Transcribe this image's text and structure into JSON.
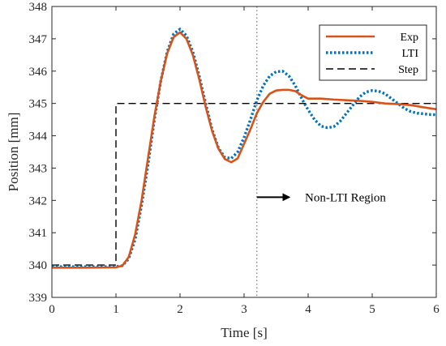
{
  "chart_data": {
    "type": "line",
    "xlabel": "Time [s]",
    "ylabel": "Position [mm]",
    "xlim": [
      0,
      6
    ],
    "ylim": [
      339,
      348
    ],
    "xticks": [
      0,
      1,
      2,
      3,
      4,
      5,
      6
    ],
    "yticks": [
      339,
      340,
      341,
      342,
      343,
      344,
      345,
      346,
      347,
      348
    ],
    "grid": false,
    "legend_position": "top-right",
    "colors": {
      "exp": "#d95319",
      "lti": "#0072bd",
      "step": "#000000",
      "vline": "#555555"
    },
    "series": [
      {
        "name": "Exp",
        "style": "solid",
        "x": [
          0,
          0.5,
          1.0,
          1.1,
          1.2,
          1.3,
          1.4,
          1.5,
          1.6,
          1.7,
          1.8,
          1.9,
          2.0,
          2.1,
          2.2,
          2.3,
          2.4,
          2.5,
          2.6,
          2.7,
          2.8,
          2.9,
          3.0,
          3.1,
          3.2,
          3.3,
          3.4,
          3.5,
          3.6,
          3.7,
          3.8,
          3.9,
          4.0,
          4.2,
          4.4,
          4.6,
          4.8,
          5.0,
          5.2,
          5.4,
          5.6,
          5.8,
          6.0
        ],
        "y": [
          339.92,
          339.92,
          339.93,
          339.98,
          340.25,
          340.95,
          342.0,
          343.3,
          344.6,
          345.7,
          346.55,
          347.05,
          347.2,
          347.0,
          346.5,
          345.75,
          344.9,
          344.15,
          343.6,
          343.28,
          343.18,
          343.3,
          343.75,
          344.2,
          344.7,
          345.05,
          345.3,
          345.4,
          345.42,
          345.42,
          345.38,
          345.25,
          345.15,
          345.15,
          345.12,
          345.1,
          345.08,
          345.05,
          345.0,
          344.98,
          344.95,
          344.88,
          344.82
        ]
      },
      {
        "name": "LTI",
        "style": "dotted",
        "x": [
          0,
          0.5,
          1.0,
          1.1,
          1.2,
          1.3,
          1.4,
          1.5,
          1.6,
          1.7,
          1.8,
          1.9,
          2.0,
          2.1,
          2.2,
          2.3,
          2.4,
          2.5,
          2.6,
          2.7,
          2.8,
          2.9,
          3.0,
          3.1,
          3.2,
          3.3,
          3.4,
          3.5,
          3.6,
          3.7,
          3.8,
          3.9,
          4.0,
          4.1,
          4.2,
          4.3,
          4.4,
          4.5,
          4.6,
          4.7,
          4.8,
          4.9,
          5.0,
          5.1,
          5.2,
          5.3,
          5.4,
          5.5,
          5.6,
          5.7,
          5.8,
          5.9,
          6.0
        ],
        "y": [
          339.95,
          339.95,
          339.95,
          339.98,
          340.2,
          340.8,
          341.85,
          343.1,
          344.5,
          345.7,
          346.6,
          347.15,
          347.3,
          347.1,
          346.6,
          345.85,
          345.0,
          344.2,
          343.62,
          343.33,
          343.3,
          343.5,
          343.95,
          344.5,
          345.1,
          345.55,
          345.85,
          345.98,
          346.0,
          345.85,
          345.55,
          345.15,
          344.8,
          344.5,
          344.3,
          344.25,
          344.28,
          344.45,
          344.7,
          344.95,
          345.2,
          345.35,
          345.4,
          345.38,
          345.3,
          345.15,
          345.0,
          344.85,
          344.75,
          344.7,
          344.68,
          344.66,
          344.65
        ]
      },
      {
        "name": "Step",
        "style": "dashed",
        "x": [
          0,
          1.0,
          1.0,
          6.0
        ],
        "y": [
          340,
          340,
          345,
          345
        ]
      }
    ],
    "annotations": [
      {
        "type": "vline",
        "x": 3.2,
        "style": "dotted"
      },
      {
        "type": "arrow",
        "from": [
          3.2,
          342.1
        ],
        "to": [
          3.7,
          342.1
        ]
      },
      {
        "type": "text",
        "text": "Non-LTI Region",
        "x": 3.95,
        "y": 342.1
      }
    ]
  }
}
